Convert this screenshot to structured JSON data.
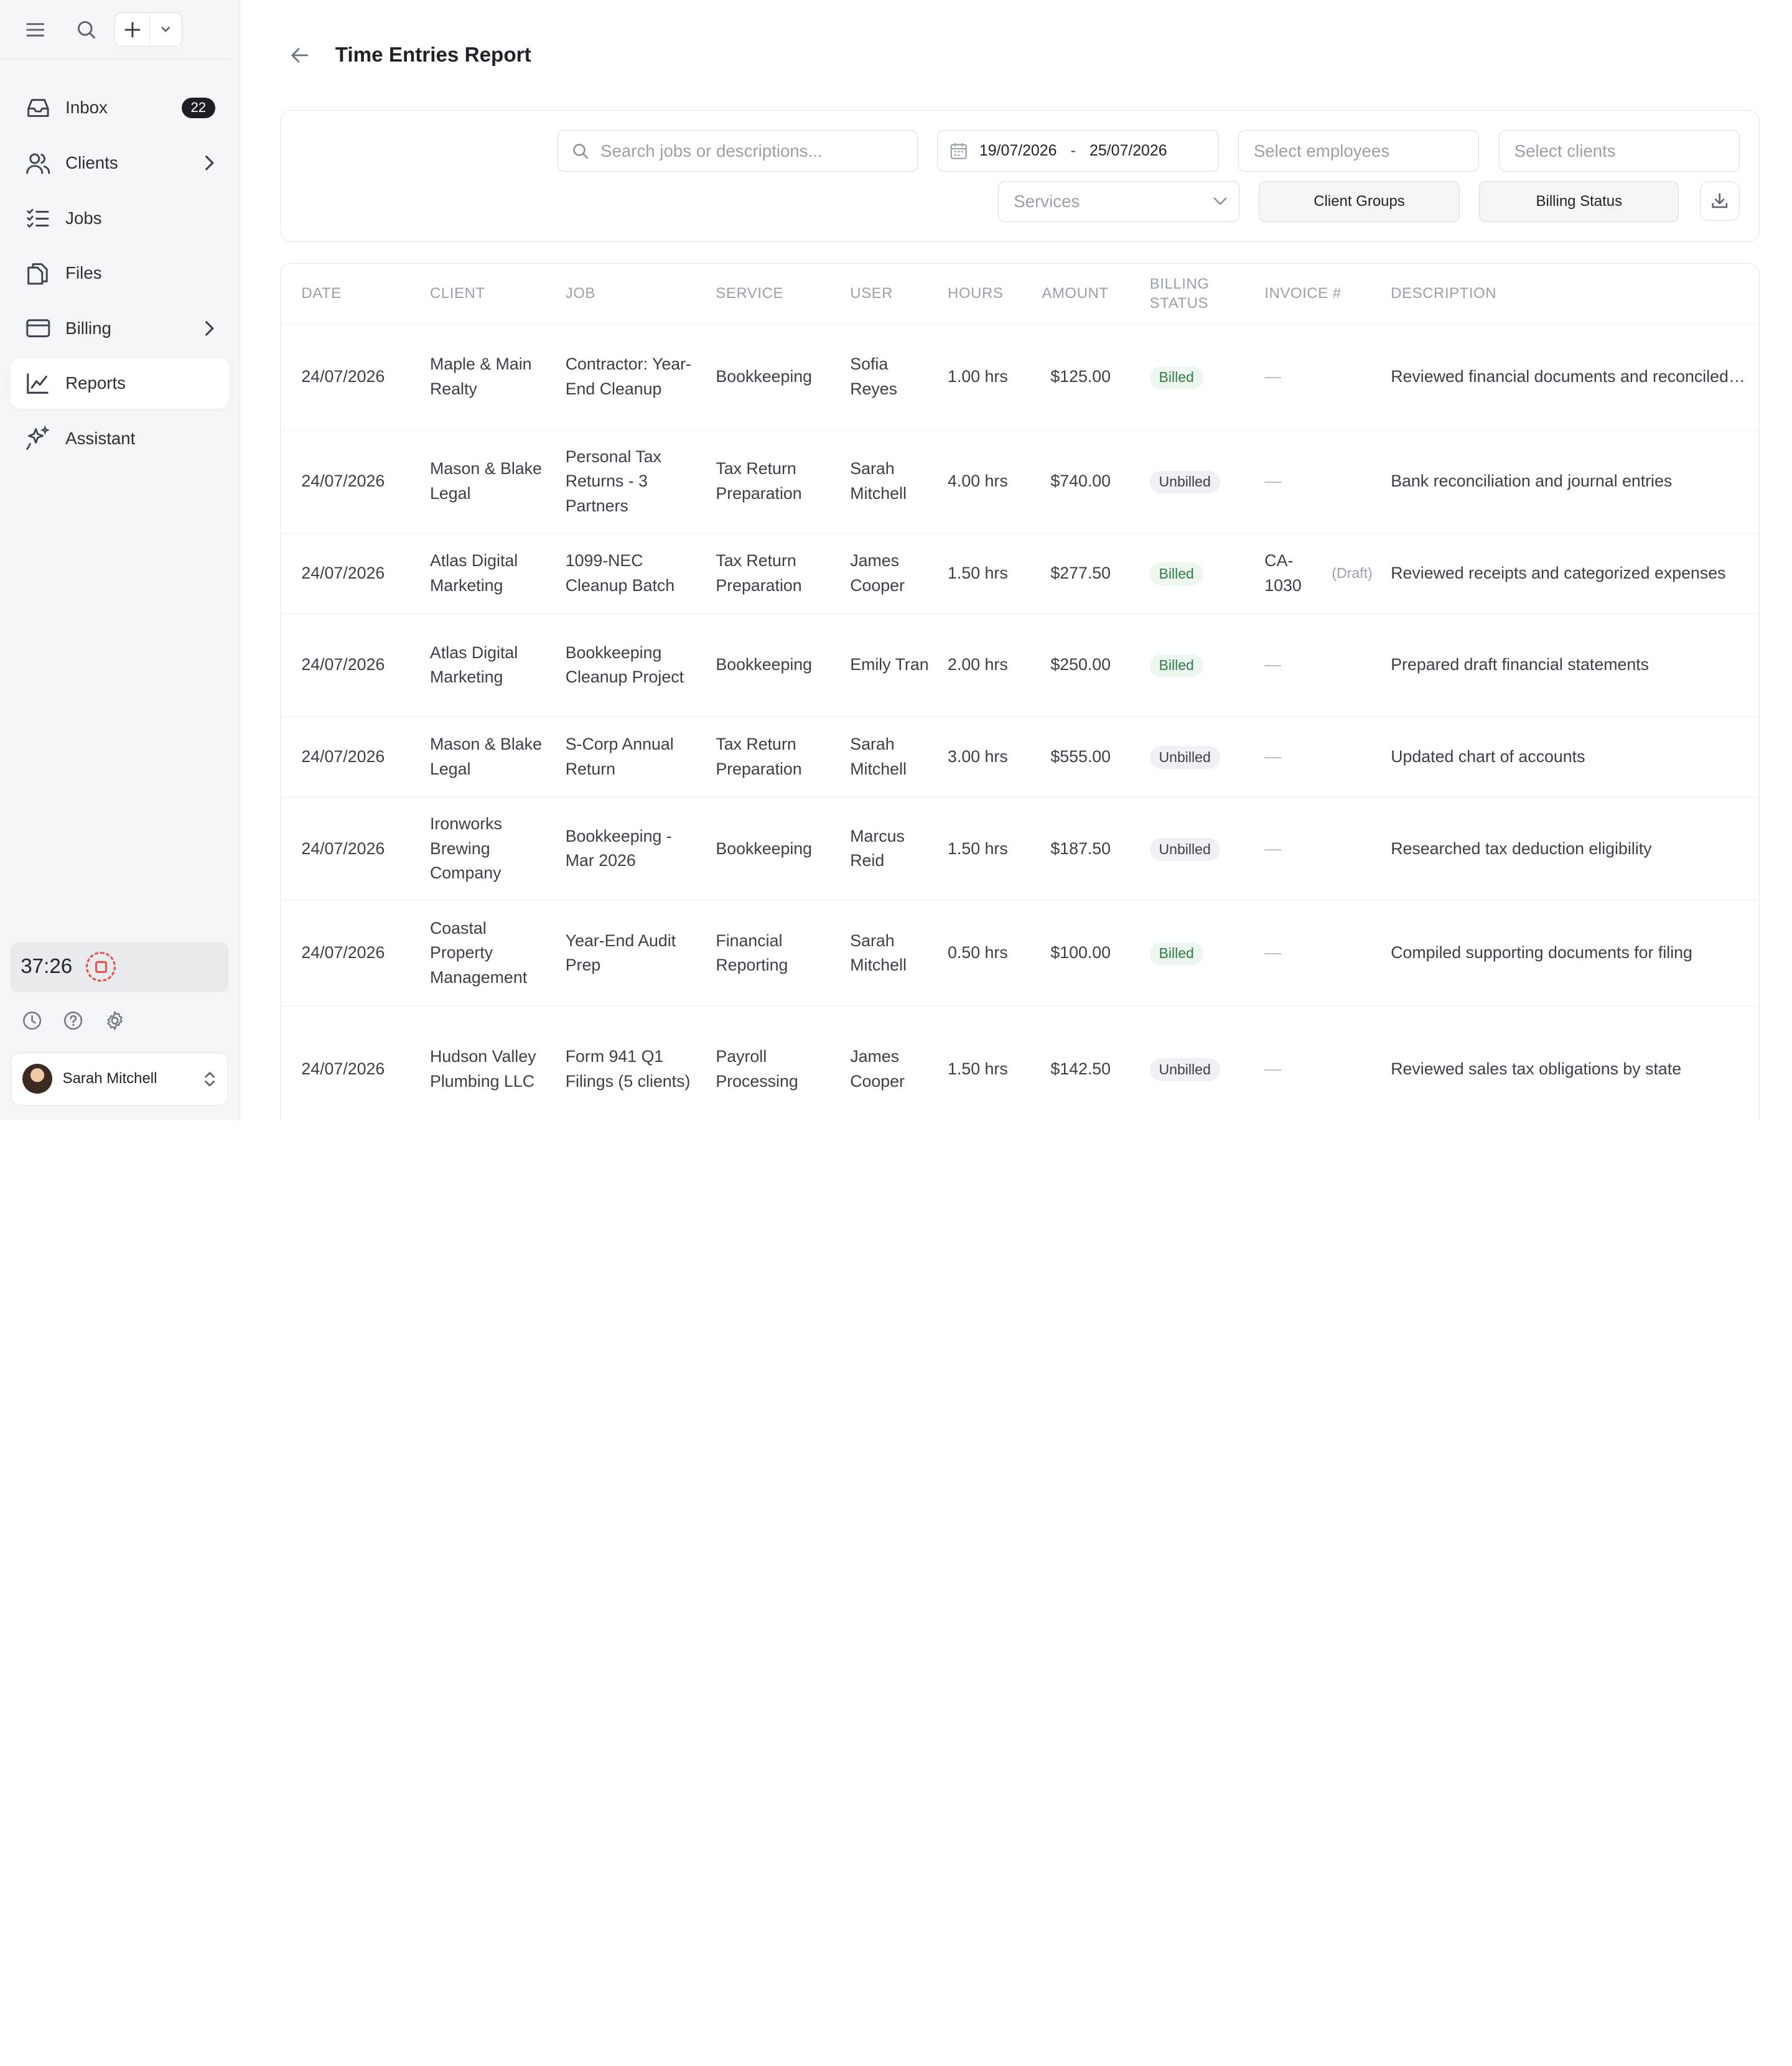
{
  "sidebar": {
    "items": [
      {
        "label": "Inbox",
        "badge": "22"
      },
      {
        "label": "Clients"
      },
      {
        "label": "Jobs"
      },
      {
        "label": "Files"
      },
      {
        "label": "Billing"
      },
      {
        "label": "Reports"
      },
      {
        "label": "Assistant"
      }
    ],
    "timer": "37:26",
    "user_name": "Sarah Mitchell"
  },
  "header": {
    "title": "Time Entries Report"
  },
  "filters": {
    "search_placeholder": "Search jobs or descriptions...",
    "date_from": "19/07/2026",
    "date_separator": "-",
    "date_to": "25/07/2026",
    "employees_placeholder": "Select employees",
    "clients_placeholder": "Select clients",
    "services_placeholder": "Services",
    "client_groups_label": "Client Groups",
    "billing_status_label": "Billing Status"
  },
  "table": {
    "columns": [
      "DATE",
      "CLIENT",
      "JOB",
      "SERVICE",
      "USER",
      "HOURS",
      "AMOUNT",
      "BILLING STATUS",
      "INVOICE #",
      "DESCRIPTION"
    ],
    "rows": [
      {
        "date": "24/07/2026",
        "client": "Maple & Main Realty",
        "job": "Contractor: Year-End Cleanup",
        "service": "Bookkeeping",
        "user": "Sofia Reyes",
        "hours": "1.00 hrs",
        "amount": "$125.00",
        "status": "Billed",
        "invoice": "—",
        "draft": "",
        "description": "Reviewed financial documents and reconciled a..."
      },
      {
        "date": "24/07/2026",
        "client": "Mason & Blake Legal",
        "job": "Personal Tax Returns - 3 Partners",
        "service": "Tax Return Preparation",
        "user": "Sarah Mitchell",
        "hours": "4.00 hrs",
        "amount": "$740.00",
        "status": "Unbilled",
        "invoice": "—",
        "draft": "",
        "description": "Bank reconciliation and journal entries"
      },
      {
        "date": "24/07/2026",
        "client": "Atlas Digital Marketing",
        "job": "1099-NEC Cleanup Batch",
        "service": "Tax Return Preparation",
        "user": "James Cooper",
        "hours": "1.50 hrs",
        "amount": "$277.50",
        "status": "Billed",
        "invoice": "CA-1030",
        "draft": "(Draft)",
        "description": "Reviewed receipts and categorized expenses"
      },
      {
        "date": "24/07/2026",
        "client": "Atlas Digital Marketing",
        "job": "Bookkeeping Cleanup Project",
        "service": "Bookkeeping",
        "user": "Emily Tran",
        "hours": "2.00 hrs",
        "amount": "$250.00",
        "status": "Billed",
        "invoice": "—",
        "draft": "",
        "description": "Prepared draft financial statements"
      },
      {
        "date": "24/07/2026",
        "client": "Mason & Blake Legal",
        "job": "S-Corp Annual Return",
        "service": "Tax Return Preparation",
        "user": "Sarah Mitchell",
        "hours": "3.00 hrs",
        "amount": "$555.00",
        "status": "Unbilled",
        "invoice": "—",
        "draft": "",
        "description": "Updated chart of accounts"
      },
      {
        "date": "24/07/2026",
        "client": "Ironworks Brewing Company",
        "job": "Bookkeeping - Mar 2026",
        "service": "Bookkeeping",
        "user": "Marcus Reid",
        "hours": "1.50 hrs",
        "amount": "$187.50",
        "status": "Unbilled",
        "invoice": "—",
        "draft": "",
        "description": "Researched tax deduction eligibility"
      },
      {
        "date": "24/07/2026",
        "client": "Coastal Property Management",
        "job": "Year-End Audit Prep",
        "service": "Financial Reporting",
        "user": "Sarah Mitchell",
        "hours": "0.50 hrs",
        "amount": "$100.00",
        "status": "Billed",
        "invoice": "—",
        "draft": "",
        "description": "Compiled supporting documents for filing"
      },
      {
        "date": "24/07/2026",
        "client": "Hudson Valley Plumbing LLC",
        "job": "Form 941 Q1 Filings (5 clients)",
        "service": "Payroll Processing",
        "user": "James Cooper",
        "hours": "1.50 hrs",
        "amount": "$142.50",
        "status": "Unbilled",
        "invoice": "—",
        "draft": "",
        "description": "Reviewed sales tax obligations by state"
      }
    ]
  }
}
